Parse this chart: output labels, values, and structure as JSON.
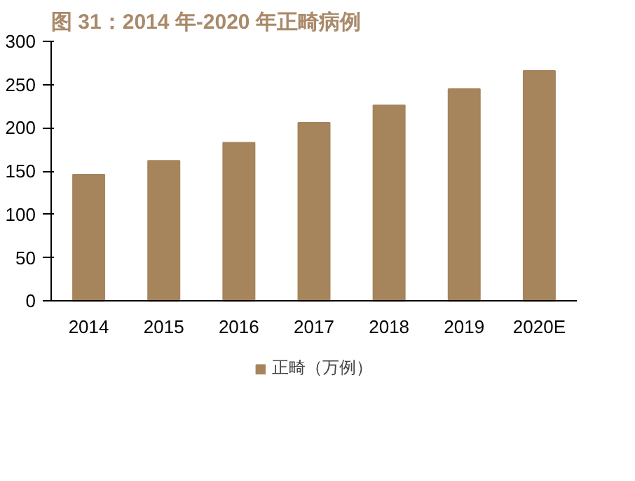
{
  "chart_data": {
    "type": "bar",
    "title": "图 31：2014 年-2020 年正畸病例",
    "categories": [
      "2014",
      "2015",
      "2016",
      "2017",
      "2018",
      "2019",
      "2020E"
    ],
    "series": [
      {
        "name": "正畸（万例）",
        "color": "#a6845c",
        "values": [
          146,
          162,
          183,
          206,
          226,
          245,
          266
        ]
      }
    ],
    "ylim": [
      0,
      300
    ],
    "yticks": [
      0,
      50,
      100,
      150,
      200,
      250,
      300
    ],
    "grid": false,
    "legend": "bottom"
  }
}
